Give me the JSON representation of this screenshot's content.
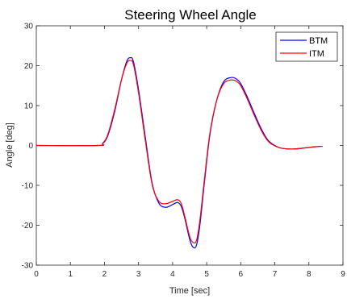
{
  "chart_data": {
    "type": "line",
    "title": "Steering Wheel Angle",
    "xlabel": "Time [sec]",
    "ylabel": "Angle [deg]",
    "xlim": [
      0,
      9
    ],
    "ylim": [
      -30,
      30
    ],
    "xticks": [
      0,
      1,
      2,
      3,
      4,
      5,
      6,
      7,
      8,
      9
    ],
    "yticks": [
      -30,
      -20,
      -10,
      0,
      10,
      20,
      30
    ],
    "grid": false,
    "legend_position": "top-right",
    "series": [
      {
        "name": "BTM",
        "color": "#0000ff",
        "x": [
          0,
          1.8,
          1.95,
          2.1,
          2.3,
          2.5,
          2.65,
          2.75,
          2.85,
          3.0,
          3.2,
          3.4,
          3.6,
          3.8,
          4.0,
          4.15,
          4.25,
          4.35,
          4.5,
          4.6,
          4.7,
          4.8,
          4.95,
          5.1,
          5.3,
          5.5,
          5.7,
          5.85,
          6.0,
          6.2,
          6.4,
          6.6,
          6.8,
          7.0,
          7.2,
          7.5,
          7.8,
          8.0,
          8.2,
          8.4
        ],
        "y": [
          0,
          0,
          0.5,
          2.5,
          8.5,
          16.5,
          21,
          22,
          21,
          14,
          2,
          -9.5,
          -14.5,
          -15.5,
          -14.8,
          -14.3,
          -15.2,
          -18,
          -23.5,
          -25.5,
          -25,
          -20,
          -8,
          3,
          11.5,
          16,
          17,
          16.8,
          15.5,
          12,
          8,
          4.2,
          1.3,
          0,
          -0.7,
          -0.9,
          -0.7,
          -0.5,
          -0.3,
          -0.2
        ]
      },
      {
        "name": "ITM",
        "color": "#ff0000",
        "x": [
          0,
          1.8,
          1.95,
          2.1,
          2.3,
          2.5,
          2.65,
          2.75,
          2.85,
          3.0,
          3.2,
          3.4,
          3.6,
          3.8,
          4.0,
          4.15,
          4.25,
          4.35,
          4.5,
          4.6,
          4.7,
          4.8,
          4.95,
          5.1,
          5.3,
          5.5,
          5.7,
          5.85,
          6.0,
          6.2,
          6.4,
          6.6,
          6.8,
          7.0,
          7.2,
          7.5,
          7.8,
          8.0,
          8.2,
          8.4
        ],
        "y": [
          0,
          0,
          0.6,
          2.8,
          9,
          16.5,
          20.5,
          21.3,
          20.3,
          13.2,
          1.2,
          -9.8,
          -14,
          -14.6,
          -14,
          -13.6,
          -14.5,
          -17.5,
          -22.8,
          -24.3,
          -23.8,
          -18.8,
          -7.2,
          3.4,
          11.5,
          15.5,
          16.4,
          16.2,
          15,
          11.5,
          7.5,
          3.8,
          1.1,
          -0.1,
          -0.7,
          -0.9,
          -0.7,
          -0.5,
          -0.3,
          -0.2
        ]
      }
    ]
  }
}
